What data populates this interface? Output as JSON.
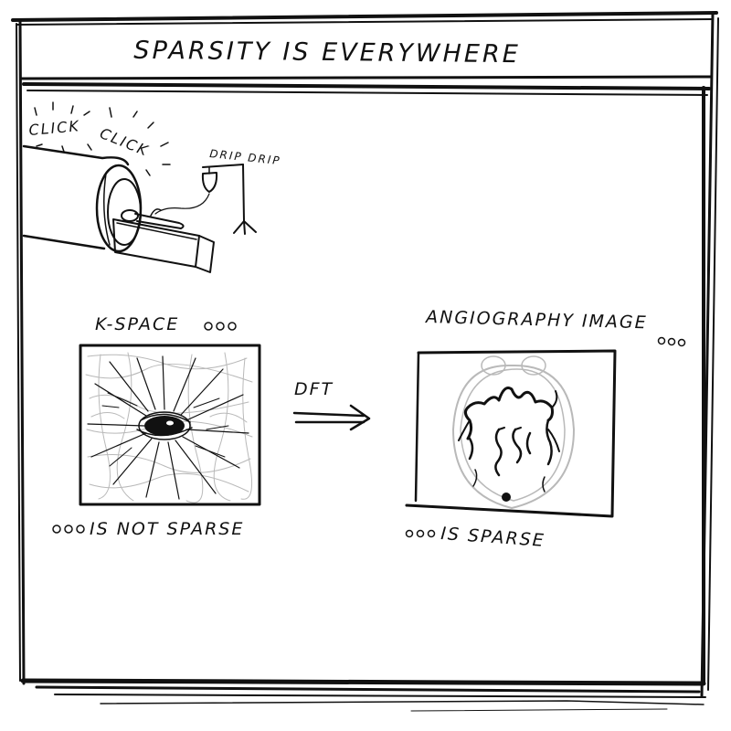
{
  "panel": {
    "title": "SPARSITY IS EVERYWHERE"
  },
  "scanner": {
    "sound_1": "CLICK",
    "sound_2": "CLICK",
    "drip_label": "DRIP DRIP"
  },
  "kspace": {
    "label": "K-SPACE",
    "caption": "IS NOT SPARSE"
  },
  "transform": {
    "label": "DFT"
  },
  "angiography": {
    "label": "ANGIOGRAPHY IMAGE",
    "caption": "IS SPARSE"
  }
}
